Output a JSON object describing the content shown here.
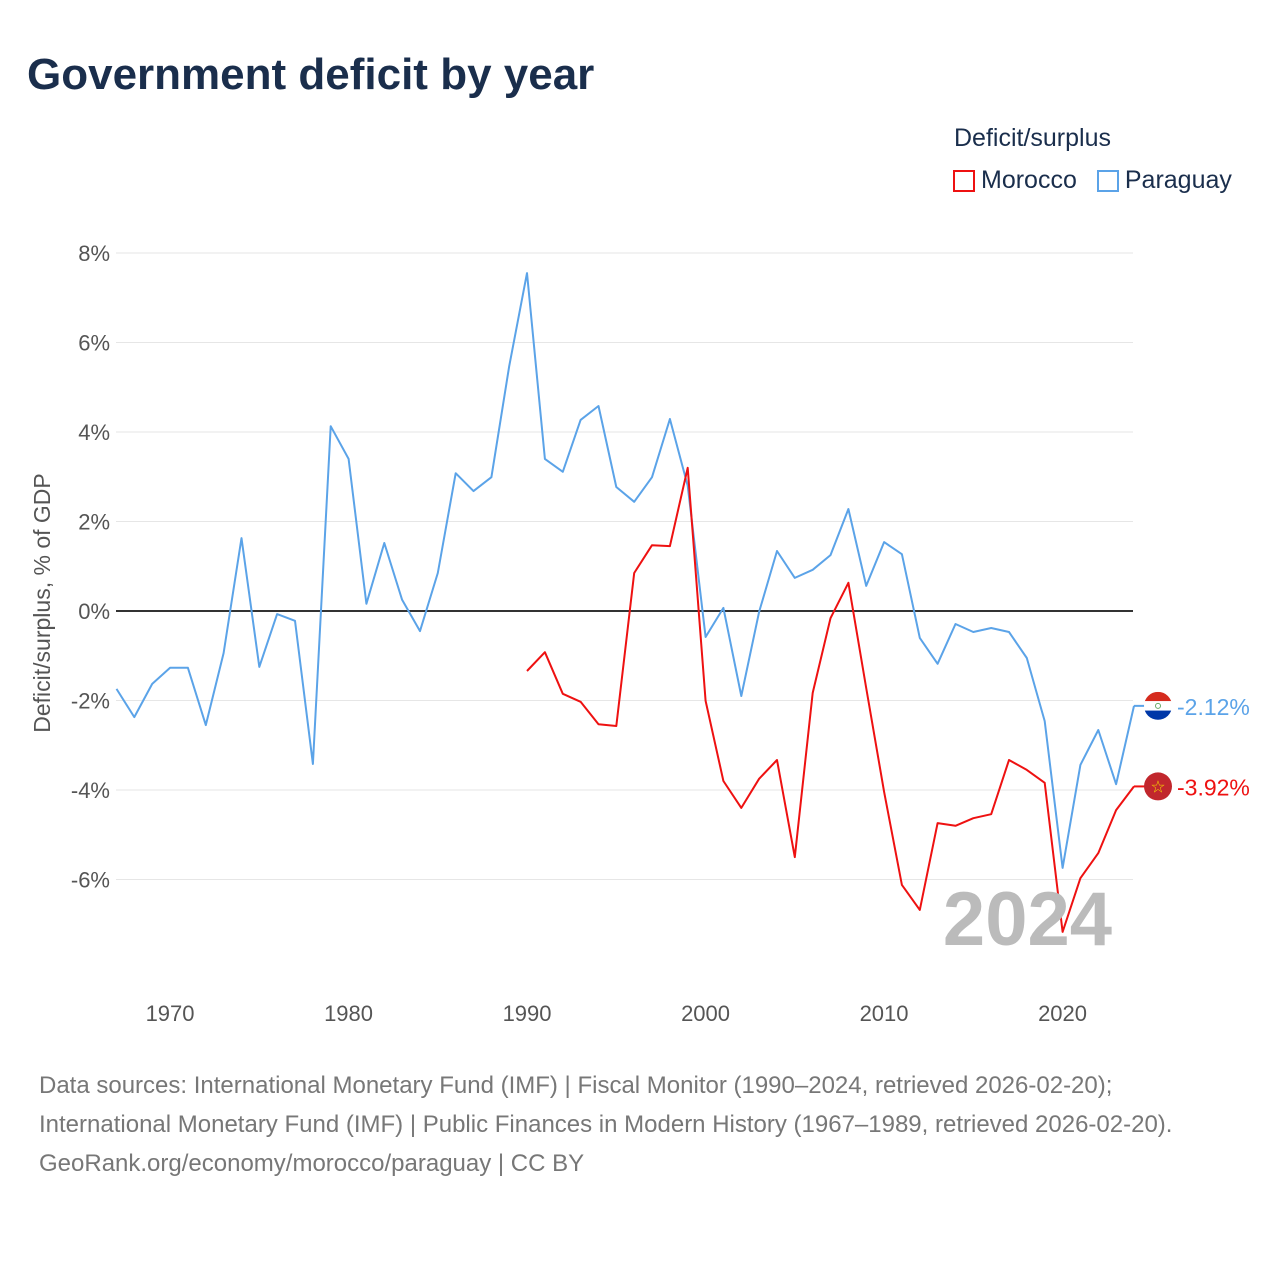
{
  "title": "Government deficit by year",
  "legend": {
    "title": "Deficit/surplus",
    "items": [
      "Morocco",
      "Paraguay"
    ]
  },
  "colors": {
    "Morocco": "#ee1111",
    "Paraguay": "#5ba3e8"
  },
  "year_label": "2024",
  "footer": {
    "sources": "Data sources: International Monetary Fund (IMF) | Fiscal Monitor (1990–2024, retrieved 2026-02-20); International Monetary Fund (IMF) | Public Finances in Modern History (1967–1989, retrieved 2026-02-20).",
    "credit": "GeoRank.org/economy/morocco/paraguay | CC BY"
  },
  "chart_data": {
    "type": "line",
    "title": "Government deficit by year",
    "xlabel": "",
    "ylabel": "Deficit/surplus, % of GDP",
    "xlim": [
      1967,
      2024
    ],
    "ylim": [
      -8,
      8
    ],
    "xticks": [
      1970,
      1980,
      1990,
      2000,
      2010,
      2020
    ],
    "yticks": [
      -6,
      -4,
      -2,
      0,
      2,
      4,
      6,
      8
    ],
    "ytick_labels": [
      "-6%",
      "-4%",
      "-2%",
      "0%",
      "2%",
      "4%",
      "6%",
      "8%"
    ],
    "grid": true,
    "legend_position": "top-right",
    "end_labels": {
      "Paraguay": "-2.12%",
      "Morocco": "-3.92%"
    },
    "series": [
      {
        "name": "Paraguay",
        "start_year": 1967,
        "values": [
          -1.74,
          -2.37,
          -1.63,
          -1.27,
          -1.27,
          -2.55,
          -0.94,
          1.63,
          -1.25,
          -0.07,
          -0.22,
          -3.42,
          4.13,
          3.4,
          0.16,
          1.52,
          0.25,
          -0.45,
          0.85,
          3.08,
          2.68,
          2.99,
          5.47,
          7.55,
          3.4,
          3.11,
          4.27,
          4.58,
          2.77,
          2.44,
          2.99,
          4.29,
          2.8,
          -0.58,
          0.07,
          -1.9,
          -0.02,
          1.34,
          0.74,
          0.92,
          1.25,
          2.28,
          0.56,
          1.54,
          1.27,
          -0.6,
          -1.18,
          -0.29,
          -0.47,
          -0.38,
          -0.47,
          -1.05,
          -2.46,
          -5.74,
          -3.44,
          -2.66,
          -3.87,
          -2.12
        ]
      },
      {
        "name": "Morocco",
        "start_year": 1990,
        "values": [
          -1.34,
          -0.92,
          -1.85,
          -2.03,
          -2.53,
          -2.57,
          0.85,
          1.47,
          1.45,
          3.2,
          -2.01,
          -3.8,
          -4.4,
          -3.75,
          -3.33,
          -5.5,
          -1.83,
          -0.16,
          0.63,
          -1.72,
          -4.04,
          -6.12,
          -6.68,
          -4.74,
          -4.8,
          -4.63,
          -4.54,
          -3.33,
          -3.55,
          -3.84,
          -7.17,
          -5.97,
          -5.41,
          -4.45,
          -3.92
        ]
      }
    ]
  }
}
